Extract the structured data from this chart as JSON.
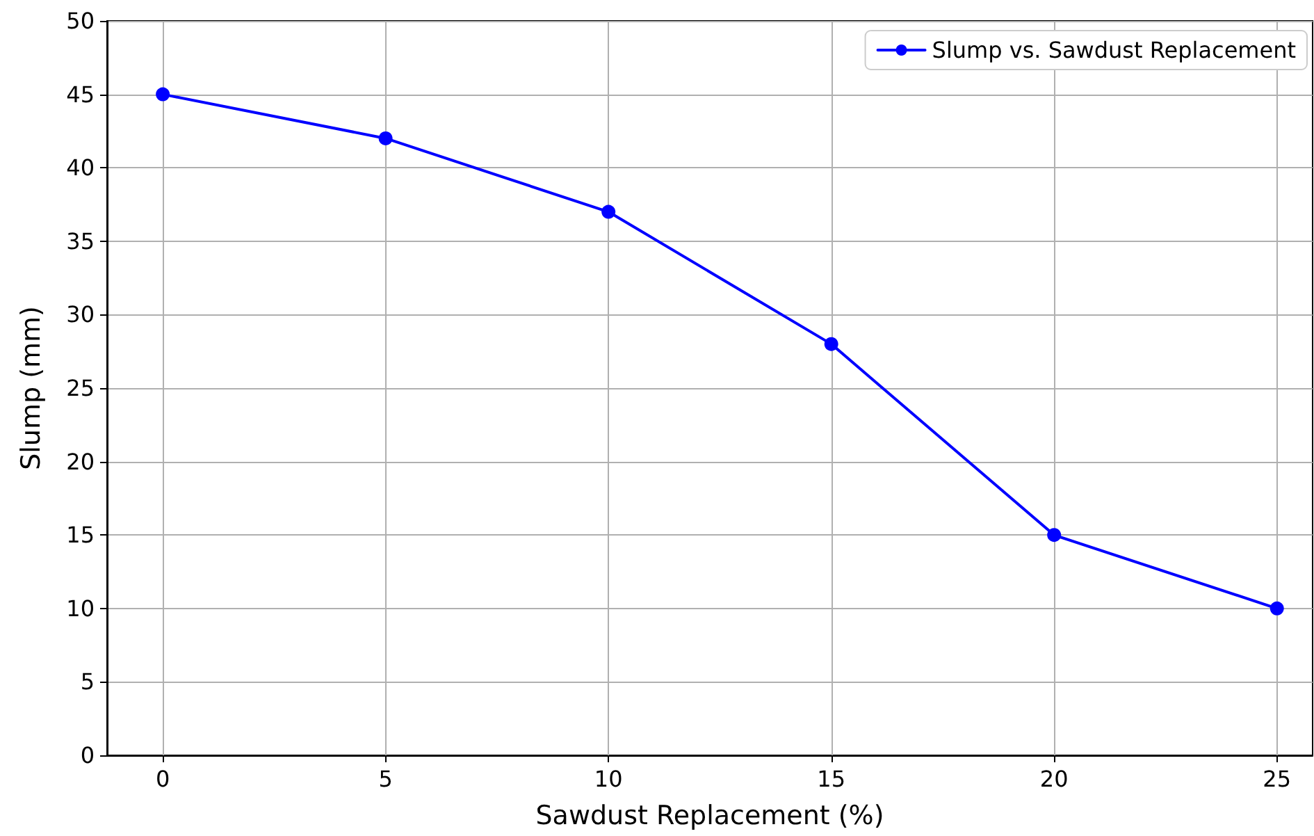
{
  "chart_data": {
    "type": "line",
    "xlabel": "Sawdust Replacement (%)",
    "ylabel": "Slump (mm)",
    "x": [
      0,
      5,
      10,
      15,
      20,
      25
    ],
    "series": [
      {
        "name": "Slump vs. Sawdust Replacement",
        "color": "#0000ff",
        "values": [
          45,
          42,
          37,
          28,
          15,
          10
        ]
      }
    ],
    "xlim": [
      -1.25,
      25.8
    ],
    "xticks": [
      0,
      5,
      10,
      15,
      20,
      25
    ],
    "ylim": [
      0,
      50
    ],
    "yticks": [
      0,
      5,
      10,
      15,
      20,
      25,
      30,
      35,
      40,
      45,
      50
    ],
    "grid": true,
    "legend": "top right",
    "marker": "circle",
    "line_style": "solid"
  }
}
